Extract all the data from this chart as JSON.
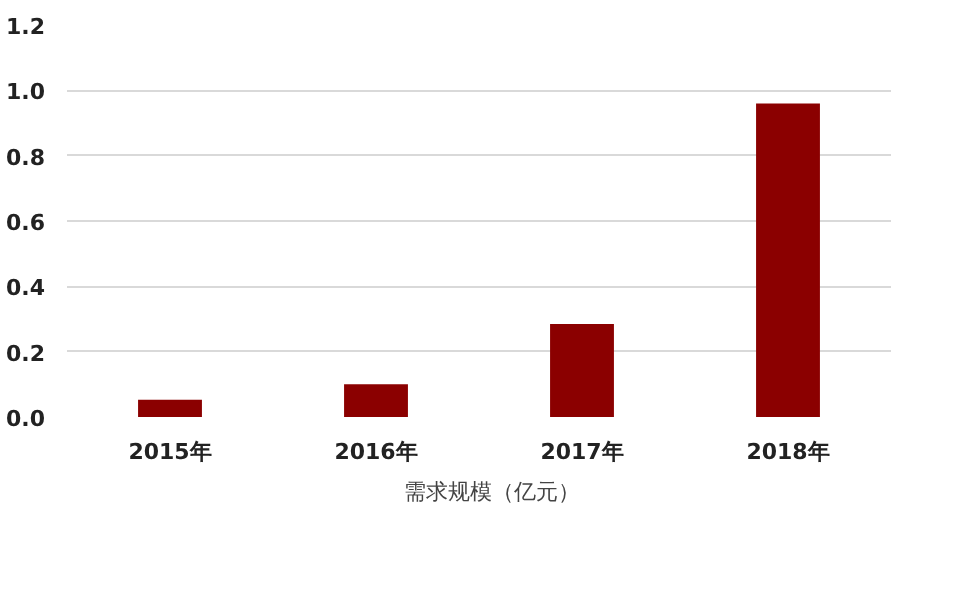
{
  "chart_data": {
    "type": "bar",
    "categories": [
      "2015年",
      "2016年",
      "2017年",
      "2018年"
    ],
    "series": [
      {
        "name": "需求规模（亿元）",
        "color": "#8b0000",
        "values": [
          0.053,
          0.1,
          0.285,
          0.96
        ]
      }
    ],
    "ylim": [
      0,
      1.2
    ],
    "yticks": [
      {
        "value": 0,
        "label": "0.0"
      },
      0.2,
      0.4,
      0.6,
      0.8,
      {
        "value": 1,
        "label": "1.0"
      },
      1.2
    ],
    "grid": "y",
    "legend": "bottom"
  }
}
